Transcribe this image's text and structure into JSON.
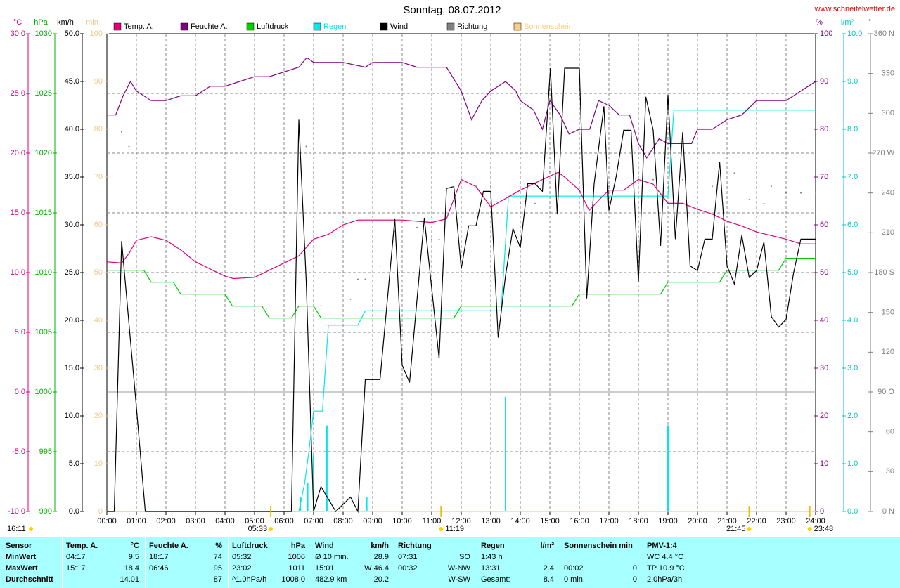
{
  "chart_data": {
    "type": "line",
    "title": "Sonntag, 08.07.2012",
    "source": "www.schneifelwetter.de",
    "footer_time": "16:11",
    "xlim": [
      0,
      24
    ],
    "xticks": [
      {
        "value": 0,
        "label": "00:00"
      },
      {
        "value": 1,
        "label": "01:00"
      },
      {
        "value": 2,
        "label": "02:00"
      },
      {
        "value": 3,
        "label": "03:00"
      },
      {
        "value": 4,
        "label": "04:00"
      },
      {
        "value": 5,
        "label": "05:00"
      },
      {
        "value": 6,
        "label": "06:00"
      },
      {
        "value": 7,
        "label": "07:00"
      },
      {
        "value": 8,
        "label": "08:00"
      },
      {
        "value": 9,
        "label": "09:00"
      },
      {
        "value": 10,
        "label": "10:00"
      },
      {
        "value": 11,
        "label": "11:00"
      },
      {
        "value": 12,
        "label": "12:00"
      },
      {
        "value": 13,
        "label": "13:00"
      },
      {
        "value": 14,
        "label": "14:00"
      },
      {
        "value": 15,
        "label": "15:00"
      },
      {
        "value": 16,
        "label": "16:00"
      },
      {
        "value": 17,
        "label": "17:00"
      },
      {
        "value": 18,
        "label": "18:00"
      },
      {
        "value": 19,
        "label": "19:00"
      },
      {
        "value": 20,
        "label": "20:00"
      },
      {
        "value": 21,
        "label": "21:00"
      },
      {
        "value": 22,
        "label": "22:00"
      },
      {
        "value": 23,
        "label": "23:00"
      },
      {
        "value": 24,
        "label": "24:00"
      }
    ],
    "grid": true,
    "grid_axis": "temp",
    "axes": {
      "temp": {
        "unit": "°C",
        "color": "#e0007a",
        "lim": [
          -10,
          30
        ],
        "ticks": [
          {
            "value": -10,
            "label": "-10.0"
          },
          {
            "value": -5,
            "label": "-5.0"
          },
          {
            "value": 0,
            "label": "0.0"
          },
          {
            "value": 5,
            "label": "5.0"
          },
          {
            "value": 10,
            "label": "10.0"
          },
          {
            "value": 15,
            "label": "15.0"
          },
          {
            "value": 20,
            "label": "20.0"
          },
          {
            "value": 25,
            "label": "25.0"
          },
          {
            "value": 30,
            "label": "30.0"
          }
        ]
      },
      "hpa": {
        "unit": "hPa",
        "color": "#00b000",
        "lim": [
          990,
          1030
        ],
        "ticks": [
          990,
          995,
          1000,
          1005,
          1010,
          1015,
          1020,
          1025,
          1030
        ]
      },
      "wind": {
        "unit": "km/h",
        "color": "#000000",
        "lim": [
          0,
          50
        ],
        "ticks": [
          {
            "value": 0,
            "label": "0.0"
          },
          {
            "value": 5,
            "label": "5.0"
          },
          {
            "value": 10,
            "label": "10.0"
          },
          {
            "value": 15,
            "label": "15.0"
          },
          {
            "value": 20,
            "label": "20.0"
          },
          {
            "value": 25,
            "label": "25.0"
          },
          {
            "value": 30,
            "label": "30.0"
          },
          {
            "value": 35,
            "label": "35.0"
          },
          {
            "value": 40,
            "label": "40.0"
          },
          {
            "value": 45,
            "label": "45.0"
          },
          {
            "value": 50,
            "label": "50.0"
          }
        ]
      },
      "min": {
        "unit": "min",
        "color": "#f0c890",
        "lim": [
          0,
          100
        ],
        "ticks": [
          0,
          10,
          20,
          30,
          40,
          50,
          60,
          70,
          80,
          90,
          100
        ]
      },
      "hum": {
        "unit": "%",
        "color": "#800080",
        "lim": [
          0,
          100
        ],
        "ticks": [
          0,
          10,
          20,
          30,
          40,
          50,
          60,
          70,
          80,
          90,
          100
        ]
      },
      "rain": {
        "unit": "l/m²",
        "color": "#00c8c8",
        "lim": [
          0,
          10
        ],
        "ticks": [
          {
            "value": 0,
            "label": "0.0"
          },
          {
            "value": 1,
            "label": "1.0"
          },
          {
            "value": 2,
            "label": "2.0"
          },
          {
            "value": 3,
            "label": "3.0"
          },
          {
            "value": 4,
            "label": "4.0"
          },
          {
            "value": 5,
            "label": "5.0"
          },
          {
            "value": 6,
            "label": "6.0"
          },
          {
            "value": 7,
            "label": "7.0"
          },
          {
            "value": 8,
            "label": "8.0"
          },
          {
            "value": 9,
            "label": "9.0"
          },
          {
            "value": 10,
            "label": "10.0"
          }
        ]
      },
      "dir": {
        "unit": "°",
        "color": "#808080",
        "lim": [
          0,
          360
        ],
        "ticks": [
          {
            "value": 0,
            "label": "0 N"
          },
          30,
          60,
          {
            "value": 90,
            "label": "90 O"
          },
          120,
          150,
          {
            "value": 180,
            "label": "180 S"
          },
          210,
          240,
          {
            "value": 270,
            "label": "270 W"
          },
          300,
          330,
          {
            "value": 360,
            "label": "360 N"
          }
        ]
      }
    },
    "series": [
      {
        "name": "Temp. A.",
        "color": "#e0007a",
        "axis": "temp",
        "style": "line",
        "x": [
          0,
          0.5,
          0.75,
          1,
          1.5,
          2,
          2.5,
          3,
          3.5,
          4,
          4.28,
          5,
          5.5,
          6,
          6.5,
          7,
          7.5,
          8,
          8.5,
          9,
          10,
          11,
          11.5,
          12,
          12.5,
          13,
          13.5,
          14,
          14.5,
          15.28,
          15.5,
          16,
          16.33,
          16.67,
          17,
          17.5,
          18,
          18.5,
          19,
          19.5,
          20,
          20.5,
          21,
          21.5,
          22,
          22.5,
          23,
          23.5,
          24
        ],
        "values": [
          10.9,
          10.8,
          11.6,
          12.7,
          13.0,
          12.7,
          11.9,
          10.9,
          10.3,
          9.7,
          9.5,
          9.6,
          10.2,
          10.8,
          11.4,
          12.8,
          13.2,
          14.0,
          14.4,
          14.4,
          14.4,
          14.2,
          14.5,
          17.8,
          17.2,
          15.5,
          16.2,
          16.9,
          17.5,
          18.4,
          18.0,
          16.9,
          15.2,
          16.1,
          16.9,
          16.9,
          17.8,
          17.4,
          15.8,
          15.8,
          15.3,
          14.9,
          14.3,
          13.9,
          13.4,
          13.1,
          12.8,
          12.4,
          12.4
        ]
      },
      {
        "name": "Feuchte A.",
        "color": "#800080",
        "axis": "hum",
        "style": "line",
        "x": [
          0,
          0.3,
          0.55,
          0.8,
          1,
          1.5,
          2,
          2.5,
          3,
          3.5,
          4,
          4.5,
          5,
          5.5,
          6,
          6.5,
          6.77,
          7,
          8,
          8.75,
          9,
          10,
          10.5,
          11,
          11.5,
          12,
          12.35,
          12.7,
          13,
          13.5,
          13.85,
          14,
          14.45,
          14.75,
          15,
          15.35,
          15.65,
          16,
          16.35,
          16.65,
          17,
          17.35,
          17.7,
          18,
          18.28,
          18.7,
          19,
          19.5,
          19.8,
          20,
          20.5,
          21,
          21.5,
          22,
          23,
          23.5,
          24
        ],
        "values": [
          83,
          83,
          87,
          90,
          88,
          86,
          86,
          87,
          87,
          89,
          89,
          90,
          91,
          91,
          92,
          93,
          95,
          94,
          94,
          93,
          94,
          94,
          93,
          93,
          93,
          88,
          82,
          86,
          88,
          90,
          88,
          86,
          84,
          80,
          86,
          83,
          79,
          80,
          80,
          86,
          85,
          83,
          83,
          77,
          74,
          78,
          77,
          77,
          77,
          80,
          80,
          82,
          83,
          86,
          86,
          88,
          90
        ]
      },
      {
        "name": "Luftdruck",
        "color": "#00cc00",
        "axis": "hpa",
        "style": "line",
        "x": [
          0,
          1.25,
          1.5,
          2.25,
          2.5,
          4.0,
          4.25,
          5.25,
          5.5,
          6.25,
          6.5,
          7.0,
          7.25,
          11.75,
          12.0,
          15.75,
          16.0,
          18.75,
          19.0,
          20.75,
          21.0,
          22.75,
          23.0,
          24
        ],
        "values": [
          1010.2,
          1010.2,
          1009.2,
          1009.2,
          1008.2,
          1008.2,
          1007.2,
          1007.2,
          1006.2,
          1006.2,
          1007.2,
          1007.2,
          1006.2,
          1006.2,
          1007.2,
          1007.2,
          1008.2,
          1008.2,
          1009.2,
          1009.2,
          1010.2,
          1010.2,
          1011.2,
          1011.2
        ]
      },
      {
        "name": "Regen",
        "color": "#00e8e8",
        "axis": "rain",
        "style": "line",
        "x": [
          0,
          6.5,
          6.7,
          6.85,
          7,
          7.3,
          7.5,
          8.5,
          8.75,
          13.35,
          13.6,
          19,
          19.2,
          24
        ],
        "values": [
          0,
          0,
          0.6,
          1.3,
          2.1,
          2.1,
          3.9,
          3.9,
          4.2,
          4.2,
          6.6,
          6.6,
          8.4,
          8.4
        ],
        "bar_x": [
          6.55,
          6.8,
          7.0,
          7.45,
          8.8,
          13.5,
          19.0
        ],
        "bar_values": [
          0.3,
          0.6,
          1.2,
          1.8,
          0.3,
          2.4,
          1.8
        ]
      },
      {
        "name": "Wind",
        "color": "#000000",
        "axis": "wind",
        "style": "line",
        "x": [
          0,
          0.25,
          0.5,
          1,
          1.3,
          6.25,
          6.5,
          6.75,
          7,
          7.25,
          7.5,
          7.75,
          8.25,
          8.5,
          8.75,
          9,
          9.25,
          9.75,
          10,
          10.25,
          10.75,
          11.25,
          11.5,
          11.75,
          12,
          12.25,
          12.5,
          12.75,
          13,
          13.25,
          13.5,
          13.75,
          14,
          14.25,
          14.5,
          14.75,
          15.02,
          15.25,
          15.5,
          16,
          16.25,
          16.5,
          16.83,
          17,
          17.25,
          17.5,
          17.75,
          18,
          18.25,
          18.5,
          18.75,
          19,
          19.25,
          19.5,
          19.75,
          20,
          20.25,
          20.5,
          20.75,
          21,
          21.25,
          21.5,
          21.75,
          22,
          22.25,
          22.5,
          22.75,
          23,
          23.25,
          23.5,
          24
        ],
        "values": [
          0,
          0,
          28.3,
          10.9,
          0,
          0,
          41.0,
          24.1,
          0,
          2.6,
          1.3,
          0,
          1.5,
          0,
          13.8,
          13.8,
          13.8,
          30.6,
          15.3,
          13.5,
          30.7,
          16.0,
          33.8,
          34.0,
          25.4,
          29.9,
          29.9,
          33.5,
          33.5,
          18.2,
          24.7,
          29.6,
          27.6,
          34.3,
          34.3,
          33.5,
          46.4,
          31.1,
          46.4,
          46.4,
          22.3,
          34.3,
          42.4,
          31.5,
          35.1,
          39.9,
          39.9,
          24.0,
          43.4,
          39.9,
          27.8,
          43.6,
          28.5,
          39.7,
          25.7,
          25.2,
          28.5,
          28.5,
          36.6,
          25.7,
          23.8,
          28.9,
          24.5,
          25.2,
          28.2,
          20.4,
          19.3,
          20.1,
          24.9,
          28.5,
          28.5
        ]
      },
      {
        "name": "Richtung",
        "color": "#808080",
        "axis": "dir",
        "style": "dots",
        "x": [
          0.5,
          0.75,
          6.75,
          7.25,
          8.25,
          8.5,
          8.75,
          9.25,
          9.75,
          10.5,
          11,
          11.25,
          12.5,
          13,
          14,
          14.5,
          15,
          16,
          17,
          18.5,
          19.5,
          20.5,
          21.25,
          21.75,
          22.25,
          22.5,
          23,
          23.5,
          24
        ],
        "values": [
          286,
          275,
          275,
          155,
          160,
          175,
          175,
          185,
          211,
          214,
          205,
          205,
          245,
          245,
          232,
          232,
          256,
          253,
          245,
          250,
          250,
          245,
          255,
          235,
          232,
          245,
          240,
          240,
          240
        ]
      },
      {
        "name": "Sonnenschein",
        "color": "#ffcc80",
        "axis": "min",
        "style": "line",
        "x": [
          0,
          24
        ],
        "values": [
          0,
          0
        ]
      }
    ],
    "annotations": [
      {
        "x": 5.55,
        "label": "05:33"
      },
      {
        "x": 11.317,
        "label": "11:19"
      },
      {
        "x": 21.75,
        "label": "21:45"
      },
      {
        "x": 23.8,
        "label": "23:48"
      }
    ]
  },
  "table": {
    "rows": [
      [
        "Sensor",
        "Temp. A.",
        "°C",
        "Feuchte A.",
        "%",
        "Luftdruck",
        "hPa",
        "Wind",
        "km/h",
        "Richtung",
        null,
        "Regen",
        "l/m²",
        "Sonnenschein min",
        null,
        "PMV-1:4"
      ],
      [
        "MinWert",
        "04:17",
        "9.5",
        "18:17",
        "74",
        "05:32",
        "1006",
        "Ø 10 min.",
        "28.9",
        "07:31",
        "SO",
        "1:43 h",
        null,
        null,
        null,
        "WC 4.4 °C"
      ],
      [
        "MaxWert",
        "15:17",
        "18.4",
        "06:46",
        "95",
        "23:02",
        "1011",
        "15:01",
        "W 46.4",
        "00:32",
        "W-NW",
        "13:31",
        "2.4",
        "00:02",
        "0",
        "TP 10.9 °C"
      ],
      [
        "Durchschnitt",
        null,
        "14.01",
        null,
        "87",
        "^1.0hPa/h",
        "1008.0",
        "482.9 km",
        "20.2",
        null,
        "W-SW",
        "Gesamt:",
        "8.4",
        "0 min.",
        "0",
        "2.0hPa/3h"
      ]
    ]
  }
}
